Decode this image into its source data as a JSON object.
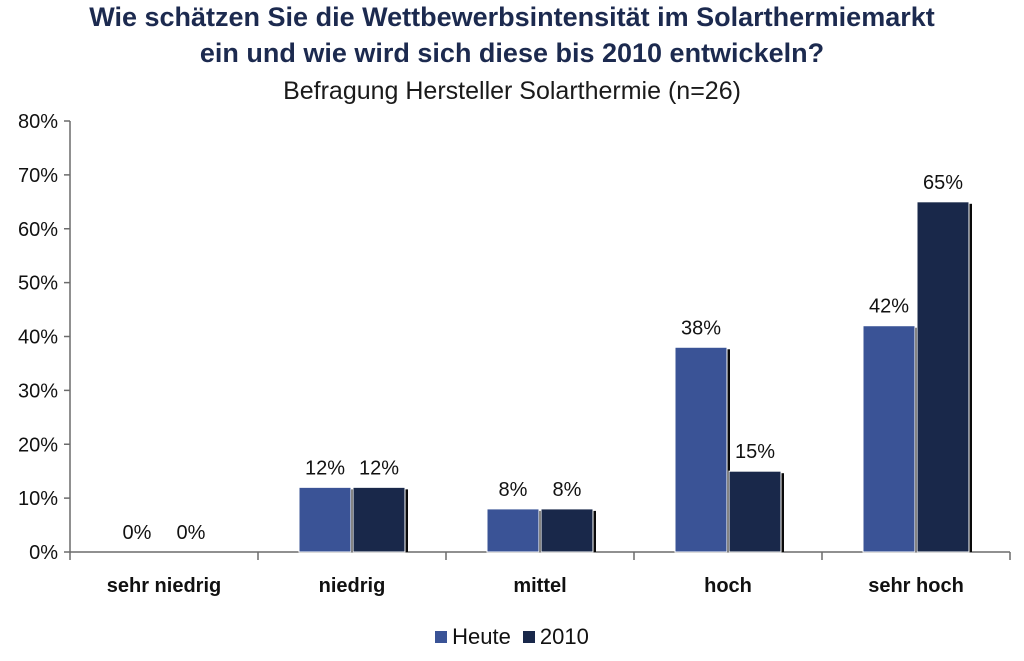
{
  "chart_data": {
    "type": "bar",
    "title_line1": "Wie schätzen Sie die Wettbewerbsintensität im Solarthermiemarkt",
    "title_line2": "ein und wie wird sich diese bis 2010 entwickeln?",
    "subtitle": "Befragung Hersteller Solarthermie (n=26)",
    "xlabel": "",
    "ylabel": "",
    "categories": [
      "sehr niedrig",
      "niedrig",
      "mittel",
      "hoch",
      "sehr hoch"
    ],
    "series": [
      {
        "name": "Heute",
        "values": [
          0,
          12,
          8,
          38,
          42
        ],
        "labels": [
          "0%",
          "12%",
          "8%",
          "38%",
          "42%"
        ],
        "color": "#3a5396"
      },
      {
        "name": "2010",
        "values": [
          0,
          12,
          8,
          15,
          65
        ],
        "labels": [
          "0%",
          "12%",
          "8%",
          "15%",
          "65%"
        ],
        "color": "#19284a"
      }
    ],
    "ylim": [
      0,
      80
    ],
    "yticks": [
      "0%",
      "10%",
      "20%",
      "30%",
      "40%",
      "50%",
      "60%",
      "70%",
      "80%"
    ],
    "grid": false,
    "legend_position": "bottom"
  }
}
